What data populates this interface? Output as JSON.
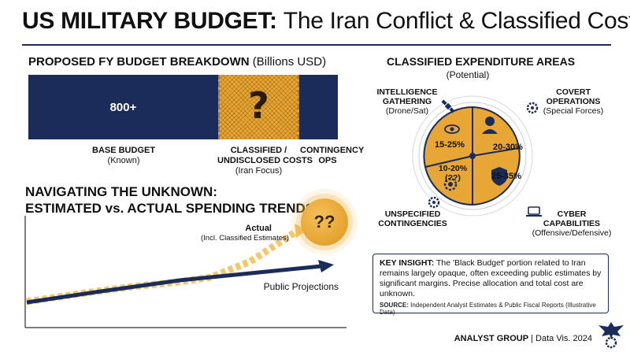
{
  "title": {
    "bold": "US MILITARY BUDGET:",
    "rest": "The Iran Conflict & Classified Costs"
  },
  "budget": {
    "heading": "PROPOSED FY BUDGET BREAKDOWN",
    "unit": "(Billions USD)",
    "base": {
      "value": "800+",
      "label": "BASE BUDGET",
      "sub": "(Known)"
    },
    "classified": {
      "symbol": "?",
      "label1": "CLASSIFIED /",
      "label2": "UNDISCLOSED COSTS",
      "sub": "(Iran Focus)"
    },
    "contingency": {
      "label1": "CONTINGENCY",
      "label2": "OPS"
    }
  },
  "trends": {
    "heading1": "NAVIGATING THE UNKNOWN:",
    "heading2": "ESTIMATED vs. ACTUAL SPENDING TRENDS",
    "marker": "??",
    "actual_label": "Actual",
    "actual_sub": "(Incl. Classified Estimates)",
    "public_label": "Public Projections"
  },
  "areas": {
    "heading": "CLASSIFIED EXPENDITURE AREAS",
    "sub": "(Potential)",
    "intel": {
      "l1": "INTELLIGENCE",
      "l2": "GATHERING",
      "sub": "(Drone/Sat)"
    },
    "covert": {
      "l1": "COVERT",
      "l2": "OPERATIONS",
      "sub": "(Special Forces)"
    },
    "unspec": {
      "l1": "UNSPECIFIED",
      "l2": "CONTINGENCIES"
    },
    "cyber": {
      "l1": "CYBER",
      "l2": "CAPABILITIES",
      "sub": "(Offensive/Defensive)"
    }
  },
  "insight": {
    "label": "KEY INSIGHT:",
    "text": "The 'Black Budget' portion related to Iran remains largely opaque, often exceeding public estimates by significant margins. Precise allocation and total cost are unknown.",
    "source_label": "SOURCE:",
    "source": "Independent Analyst Estimates & Public Fiscal Reports (Illustrative Data)"
  },
  "footer": {
    "org": "ANALYST GROUP",
    "rest": "| Data Vis. 2024"
  },
  "colors": {
    "navy": "#1c2c5a",
    "gold": "#e8a735",
    "gold_light": "#f2c15c"
  },
  "chart_data": [
    {
      "type": "bar",
      "title": "PROPOSED FY BUDGET BREAKDOWN (Billions USD)",
      "categories": [
        "BASE BUDGET (Known)",
        "CLASSIFIED / UNDISCLOSED COSTS (Iran Focus)",
        "CONTINGENCY OPS"
      ],
      "values": [
        "800+",
        "?",
        null
      ],
      "stacked_horizontal": true
    },
    {
      "type": "line",
      "title": "NAVIGATING THE UNKNOWN: ESTIMATED vs. ACTUAL SPENDING TRENDS",
      "series": [
        {
          "name": "Actual (Incl. Classified Estimates)",
          "style": "dashed",
          "trend": "rising steeply"
        },
        {
          "name": "Public Projections",
          "style": "solid",
          "trend": "rising moderately"
        }
      ]
    },
    {
      "type": "pie",
      "title": "CLASSIFIED EXPENDITURE AREAS (Potential)",
      "slices": [
        {
          "name": "INTELLIGENCE GATHERING (Drone/Sat)",
          "value": "15-25%"
        },
        {
          "name": "COVERT OPERATIONS (Special Forces)",
          "value": "20-30%"
        },
        {
          "name": "CYBER CAPABILITIES (Offensive/Defensive)",
          "value": "25-35%"
        },
        {
          "name": "UNSPECIFIED CONTINGENCIES",
          "value": "10-20% (??)"
        }
      ]
    }
  ]
}
